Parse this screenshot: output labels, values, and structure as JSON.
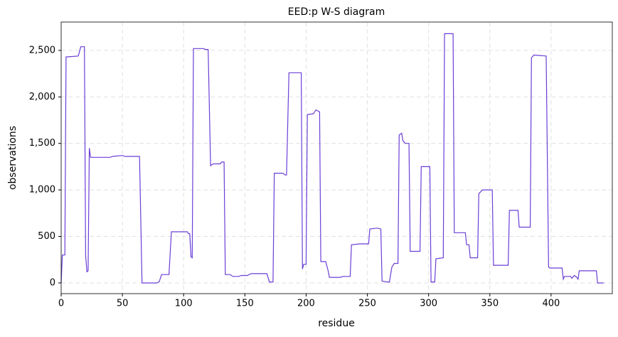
{
  "chart_data": {
    "type": "line",
    "title": "EED:p W-S diagram",
    "xlabel": "residue",
    "ylabel": "observations",
    "color": "#6a3fd6",
    "grid": true,
    "xlim": [
      0,
      450
    ],
    "ylim": [
      -115,
      2805
    ],
    "xticks": [
      0,
      50,
      100,
      150,
      200,
      250,
      300,
      350,
      400
    ],
    "yticks": [
      0,
      500,
      {
        "value": 1000,
        "label": "1,000"
      },
      {
        "value": 1500,
        "label": "1,500"
      },
      {
        "value": 2000,
        "label": "2,000"
      },
      {
        "value": 2500,
        "label": "2,500"
      }
    ],
    "x": [
      0,
      1,
      3,
      4,
      14,
      16,
      19,
      20,
      21,
      22,
      23,
      24,
      40,
      42,
      50,
      52,
      64,
      66,
      78,
      80,
      82,
      88,
      90,
      103,
      104,
      105,
      106,
      107,
      108,
      116,
      118,
      120,
      122,
      124,
      130,
      131,
      133,
      134,
      138,
      140,
      145,
      147,
      152,
      155,
      166,
      168,
      170,
      173,
      174,
      181,
      183,
      184,
      186,
      196,
      197,
      198,
      200,
      201,
      206,
      208,
      211,
      212,
      216,
      218,
      219,
      228,
      230,
      236,
      237,
      244,
      251,
      252,
      258,
      261,
      262,
      266,
      268,
      270,
      272,
      275,
      276,
      278,
      279,
      281,
      284,
      285,
      293,
      294,
      301,
      302,
      305,
      306,
      312,
      313,
      320,
      321,
      330,
      331,
      333,
      334,
      340,
      341,
      344,
      352,
      353,
      365,
      366,
      373,
      374,
      383,
      384,
      386,
      396,
      398,
      399,
      409,
      410,
      411,
      413,
      416,
      417,
      419,
      421,
      422,
      423,
      437,
      438,
      443
    ],
    "values": [
      0,
      300,
      300,
      2430,
      2440,
      2540,
      2540,
      300,
      120,
      130,
      1450,
      1350,
      1350,
      1360,
      1370,
      1360,
      1360,
      0,
      0,
      10,
      90,
      90,
      550,
      550,
      530,
      530,
      280,
      270,
      2520,
      2520,
      2510,
      2510,
      1260,
      1280,
      1280,
      1300,
      1300,
      90,
      90,
      70,
      70,
      80,
      80,
      100,
      100,
      100,
      10,
      10,
      1180,
      1180,
      1160,
      1160,
      2260,
      2260,
      150,
      200,
      200,
      1810,
      1820,
      1860,
      1840,
      230,
      230,
      130,
      60,
      60,
      70,
      70,
      410,
      420,
      420,
      580,
      590,
      580,
      20,
      10,
      10,
      170,
      210,
      210,
      1590,
      1610,
      1530,
      1500,
      1500,
      340,
      340,
      1250,
      1250,
      10,
      10,
      260,
      270,
      2680,
      2680,
      540,
      540,
      410,
      410,
      270,
      270,
      960,
      1000,
      1000,
      190,
      190,
      780,
      780,
      600,
      600,
      2420,
      2450,
      2440,
      170,
      160,
      160,
      40,
      70,
      70,
      70,
      50,
      80,
      60,
      40,
      130,
      130,
      0,
      0
    ]
  }
}
